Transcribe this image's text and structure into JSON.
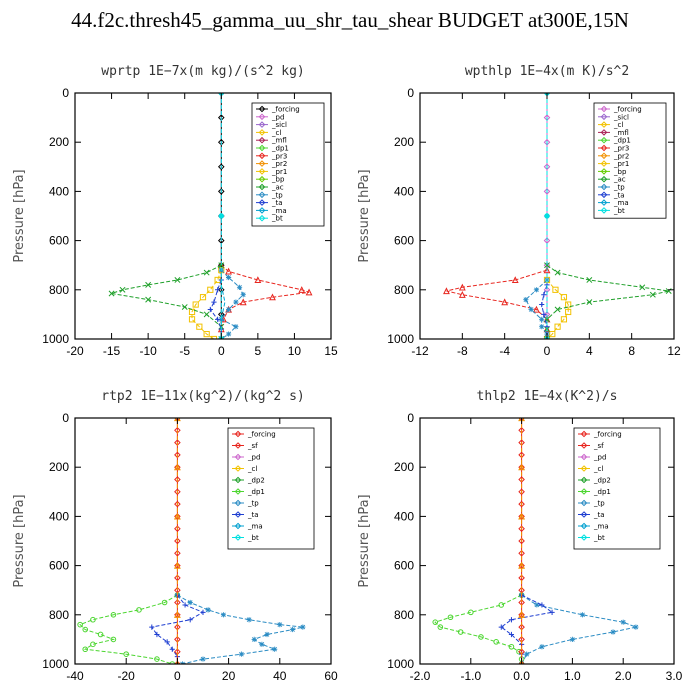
{
  "title": "44.f2c.thresh45_gamma_uu_shr_tau_shear  BUDGET at300E,15N",
  "chart_data": [
    {
      "type": "line",
      "title": "wprtp  1E−7x(m kg)/(s^2 kg)",
      "ylabel": "Pressure [hPa]",
      "xlim": [
        -20,
        15
      ],
      "ylim": [
        1000,
        0
      ],
      "xticks": [
        "-20",
        "-15",
        "-10",
        "-5",
        "0",
        "5",
        "10",
        "15"
      ],
      "xtick_values": [
        -20,
        -15,
        -10,
        -5,
        0,
        5,
        10,
        15
      ],
      "yticks": [
        "0",
        "200",
        "400",
        "600",
        "800",
        "1000"
      ],
      "legend": [
        "_forcing",
        "_pd",
        "_sicl",
        "_cl",
        "_mfl",
        "_dp1",
        "_pr3",
        "_pr2",
        "_pr1",
        "_bp",
        "_ac",
        "_tp",
        "_ta",
        "_ma",
        "_bt"
      ],
      "series": [
        {
          "name": "_forcing",
          "color": "#000000",
          "marker": "diamond",
          "p": [
            0,
            100,
            200,
            300,
            400,
            500,
            600,
            700,
            800,
            900,
            1000
          ],
          "x": [
            0,
            0,
            0,
            0,
            0,
            0,
            0,
            0,
            0,
            0,
            0
          ]
        },
        {
          "name": "_pd",
          "color": "#cc66cc",
          "marker": "dot",
          "p": [
            0,
            500,
            1000
          ],
          "x": [
            0,
            0,
            0
          ]
        },
        {
          "name": "_dp1",
          "color": "#e8261f",
          "marker": "triangle",
          "p": [
            700,
            725,
            760,
            800,
            810,
            830,
            850,
            880,
            920,
            960,
            1000
          ],
          "x": [
            0,
            1,
            5,
            11,
            12,
            7,
            3,
            1,
            0.3,
            0,
            0
          ]
        },
        {
          "name": "_pr1",
          "color": "#f2c200",
          "marker": "square",
          "p": [
            720,
            760,
            800,
            830,
            860,
            890,
            920,
            950,
            980,
            1000
          ],
          "x": [
            0,
            -0.5,
            -1.5,
            -2.5,
            -3.5,
            -4,
            -4,
            -3,
            -2,
            -1
          ]
        },
        {
          "name": "_ac",
          "color": "#1fa02a",
          "marker": "cross",
          "p": [
            700,
            730,
            760,
            780,
            800,
            815,
            840,
            870,
            900,
            950,
            1000
          ],
          "x": [
            0,
            -2,
            -6,
            -10,
            -13.5,
            -15,
            -10,
            -5,
            -2,
            0,
            0
          ]
        },
        {
          "name": "_tp",
          "color": "#2b8cc4",
          "marker": "star",
          "p": [
            720,
            750,
            790,
            820,
            850,
            880,
            920,
            950,
            980,
            1000
          ],
          "x": [
            0,
            1,
            2.5,
            3,
            2,
            1,
            0,
            2,
            1,
            0
          ]
        },
        {
          "name": "_ta",
          "color": "#1f3fd1",
          "marker": "plus",
          "p": [
            760,
            800,
            850,
            880,
            920,
            960,
            1000
          ],
          "x": [
            0,
            -0.5,
            -1,
            -1.5,
            -0.5,
            0,
            0
          ]
        },
        {
          "name": "_ma",
          "color": "#00a0d0",
          "marker": "none",
          "p": [
            780,
            850,
            920,
            1000
          ],
          "x": [
            0,
            0.5,
            0,
            0
          ]
        },
        {
          "name": "_bt",
          "color": "#00e0e0",
          "marker": "dot",
          "p": [
            0,
            500,
            1000
          ],
          "x": [
            0,
            0,
            0
          ]
        }
      ]
    },
    {
      "type": "line",
      "title": "wpthlp  1E−4x(m K)/s^2",
      "ylabel": "Pressure [hPa]",
      "xlim": [
        -12,
        12
      ],
      "ylim": [
        1000,
        0
      ],
      "xticks": [
        "-12",
        "-8",
        "-4",
        "0",
        "4",
        "8",
        "12"
      ],
      "xtick_values": [
        -12,
        -8,
        -4,
        0,
        4,
        8,
        12
      ],
      "yticks": [
        "0",
        "200",
        "400",
        "600",
        "800",
        "1000"
      ],
      "legend": [
        "_forcing",
        "_sicl",
        "_cl",
        "_mfl",
        "_dp1",
        "_pr3",
        "_pr2",
        "_pr1",
        "_bp",
        "_ac",
        "_tp",
        "_ta",
        "_ma",
        "_bt"
      ],
      "series": [
        {
          "name": "_forcing",
          "color": "#cc66cc",
          "marker": "diamond",
          "p": [
            0,
            100,
            200,
            300,
            400,
            500,
            600,
            700,
            800,
            900,
            1000
          ],
          "x": [
            0,
            0,
            0,
            0,
            0,
            0,
            0,
            0,
            0,
            0,
            0
          ]
        },
        {
          "name": "_dp1",
          "color": "#e8261f",
          "marker": "triangle",
          "p": [
            720,
            760,
            790,
            805,
            820,
            850,
            880,
            920,
            960,
            1000
          ],
          "x": [
            0,
            -3,
            -8,
            -9.5,
            -8,
            -4,
            -1,
            0,
            0,
            0
          ]
        },
        {
          "name": "_pr1",
          "color": "#f2c200",
          "marker": "square",
          "p": [
            760,
            800,
            830,
            860,
            890,
            920,
            950,
            980,
            1000
          ],
          "x": [
            0,
            0.8,
            1.6,
            2,
            2,
            1.6,
            1,
            0.5,
            0
          ]
        },
        {
          "name": "_ac",
          "color": "#1fa02a",
          "marker": "cross",
          "p": [
            700,
            730,
            760,
            790,
            805,
            820,
            850,
            880,
            920,
            960,
            1000
          ],
          "x": [
            0,
            1,
            4,
            9,
            11.5,
            10,
            4,
            1,
            0,
            0,
            0
          ]
        },
        {
          "name": "_tp",
          "color": "#2b8cc4",
          "marker": "star",
          "p": [
            760,
            800,
            840,
            880,
            920,
            950,
            980,
            1000
          ],
          "x": [
            0,
            -1,
            -2,
            -1.5,
            -0.5,
            -0.5,
            0,
            0
          ]
        },
        {
          "name": "_ta",
          "color": "#1f3fd1",
          "marker": "plus",
          "p": [
            780,
            820,
            860,
            900,
            950,
            1000
          ],
          "x": [
            0,
            -0.3,
            -0.5,
            -0.3,
            0,
            0
          ]
        },
        {
          "name": "_bt",
          "color": "#00e0e0",
          "marker": "dot",
          "p": [
            0,
            500,
            1000
          ],
          "x": [
            0,
            0,
            0
          ]
        }
      ]
    },
    {
      "type": "line",
      "title": "rtp2  1E−11x(kg^2)/(kg^2 s)",
      "ylabel": "Pressure [hPa]",
      "xlim": [
        -40,
        60
      ],
      "ylim": [
        1000,
        0
      ],
      "xticks": [
        "-40",
        "-20",
        "0",
        "20",
        "40",
        "60"
      ],
      "xtick_values": [
        -40,
        -20,
        0,
        20,
        40,
        60
      ],
      "yticks": [
        "0",
        "200",
        "400",
        "600",
        "800",
        "1000"
      ],
      "legend": [
        "_forcing",
        "_sf",
        "_pd",
        "_cl",
        "_dp2",
        "_dp1",
        "_tp",
        "_ta",
        "_ma",
        "_bt"
      ],
      "series": [
        {
          "name": "_dp1",
          "color": "#4cd630",
          "marker": "circle",
          "p": [
            720,
            750,
            780,
            800,
            820,
            840,
            860,
            880,
            900,
            920,
            940,
            960,
            980,
            1000
          ],
          "x": [
            0,
            -5,
            -15,
            -25,
            -33,
            -38,
            -36,
            -30,
            -25,
            -33,
            -36,
            -20,
            -8,
            -2
          ]
        },
        {
          "name": "_tp",
          "color": "#2b8cc4",
          "marker": "star",
          "p": [
            720,
            750,
            780,
            800,
            820,
            840,
            850,
            860,
            880,
            900,
            920,
            940,
            960,
            980,
            1000
          ],
          "x": [
            0,
            5,
            12,
            18,
            28,
            40,
            49,
            45,
            35,
            30,
            33,
            38,
            25,
            10,
            2
          ]
        },
        {
          "name": "_ta",
          "color": "#1f3fd1",
          "marker": "plus",
          "p": [
            720,
            760,
            790,
            820,
            850,
            880,
            910,
            940,
            970,
            1000
          ],
          "x": [
            0,
            3,
            10,
            5,
            -10,
            -8,
            -4,
            -2,
            0,
            0
          ]
        },
        {
          "name": "_forcing",
          "color": "#e8261f",
          "marker": "diamond",
          "p": [
            0,
            50,
            100,
            150,
            200,
            250,
            300,
            350,
            400,
            450,
            500,
            550,
            600,
            650,
            700,
            750,
            800,
            850,
            900,
            950,
            1000
          ],
          "x": [
            0,
            0,
            0,
            0,
            0,
            0,
            0,
            0,
            0,
            0,
            0,
            0,
            0,
            0,
            0,
            0,
            0,
            0,
            0,
            0,
            0
          ]
        },
        {
          "name": "_pd",
          "color": "#f29000",
          "marker": "triangle",
          "p": [
            0,
            200,
            400,
            600,
            800,
            1000
          ],
          "x": [
            0,
            0,
            0,
            0,
            0,
            0
          ]
        }
      ]
    },
    {
      "type": "line",
      "title": "thlp2  1E−4x(K^2)/s",
      "ylabel": "Pressure [hPa]",
      "xlim": [
        -2,
        3
      ],
      "ylim": [
        1000,
        0
      ],
      "xticks": [
        "-2.0",
        "-1.0",
        "0.0",
        "1.0",
        "2.0",
        "3.0"
      ],
      "xtick_values": [
        -2,
        -1,
        0,
        1,
        2,
        3
      ],
      "yticks": [
        "0",
        "200",
        "400",
        "600",
        "800",
        "1000"
      ],
      "legend": [
        "_forcing",
        "_sf",
        "_pd",
        "_cl",
        "_dp2",
        "_dp1",
        "_tp",
        "_ta",
        "_ma",
        "_bt"
      ],
      "series": [
        {
          "name": "_dp1",
          "color": "#4cd630",
          "marker": "circle",
          "p": [
            720,
            760,
            790,
            810,
            830,
            850,
            870,
            890,
            910,
            930,
            950,
            980,
            1000
          ],
          "x": [
            0,
            -0.4,
            -1,
            -1.4,
            -1.7,
            -1.6,
            -1.2,
            -0.8,
            -0.5,
            -0.2,
            -0.05,
            0,
            0
          ]
        },
        {
          "name": "_tp",
          "color": "#2b8cc4",
          "marker": "star",
          "p": [
            720,
            760,
            800,
            830,
            850,
            870,
            900,
            930,
            960,
            1000
          ],
          "x": [
            0,
            0.3,
            1.2,
            2,
            2.25,
            1.8,
            1,
            0.4,
            0.1,
            0
          ]
        },
        {
          "name": "_ta",
          "color": "#1f3fd1",
          "marker": "plus",
          "p": [
            720,
            760,
            790,
            820,
            850,
            880,
            920,
            960,
            1000
          ],
          "x": [
            0,
            0.4,
            0.6,
            -0.2,
            -0.4,
            -0.2,
            0,
            0,
            0
          ]
        },
        {
          "name": "_forcing",
          "color": "#e8261f",
          "marker": "diamond",
          "p": [
            0,
            50,
            100,
            150,
            200,
            250,
            300,
            350,
            400,
            450,
            500,
            550,
            600,
            650,
            700,
            750,
            800,
            850,
            900,
            950,
            1000
          ],
          "x": [
            0,
            0,
            0,
            0,
            0,
            0,
            0,
            0,
            0,
            0,
            0,
            0,
            0,
            0,
            0,
            0,
            0,
            0,
            0,
            0,
            0
          ]
        },
        {
          "name": "_pd",
          "color": "#f29000",
          "marker": "triangle",
          "p": [
            0,
            200,
            400,
            600,
            800,
            1000
          ],
          "x": [
            0,
            0,
            0,
            0,
            0,
            0
          ]
        }
      ]
    }
  ]
}
